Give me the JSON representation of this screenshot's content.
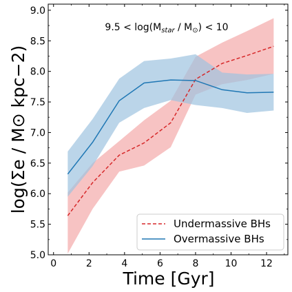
{
  "chart_data": {
    "type": "line",
    "annotation": "9.5 < log(M",
    "annotation_sub": "star",
    "annotation_mid": " / M",
    "annotation_sub2": "⊙",
    "annotation_end": ") < 10",
    "xlabel": "Time [Gyr]",
    "ylabel": "log(Σe / M⊙ kpc−2)",
    "xlim": [
      -0.3,
      13.2
    ],
    "ylim": [
      5.0,
      9.1
    ],
    "xticks": [
      0,
      2,
      4,
      6,
      8,
      10,
      12
    ],
    "yticks": [
      5.0,
      5.5,
      6.0,
      6.5,
      7.0,
      7.5,
      8.0,
      8.5,
      9.0
    ],
    "legend_position": "lower-right",
    "series": [
      {
        "name": "Undermassive BHs",
        "color": "#d62728",
        "band_color": "#f4a9a9",
        "line_style": "dashed",
        "x": [
          0.8,
          2.2,
          3.7,
          5.1,
          6.6,
          8.0,
          9.5,
          10.9,
          12.4
        ],
        "values": [
          5.64,
          6.18,
          6.63,
          6.83,
          7.16,
          7.87,
          8.13,
          8.26,
          8.41
        ],
        "lower": [
          5.02,
          5.75,
          6.36,
          6.46,
          6.76,
          7.62,
          7.79,
          7.86,
          7.96
        ],
        "upper": [
          6.02,
          6.5,
          6.86,
          7.2,
          7.52,
          8.24,
          8.47,
          8.66,
          8.87
        ]
      },
      {
        "name": "Overmassive BHs",
        "color": "#1f77b4",
        "band_color": "#9ec3e0",
        "line_style": "solid",
        "x": [
          0.8,
          2.2,
          3.7,
          5.1,
          6.6,
          8.0,
          9.5,
          10.9,
          12.4
        ],
        "values": [
          6.32,
          6.84,
          7.52,
          7.81,
          7.86,
          7.85,
          7.7,
          7.65,
          7.66
        ],
        "lower": [
          5.95,
          6.45,
          7.16,
          7.4,
          7.53,
          7.45,
          7.4,
          7.32,
          7.36
        ],
        "upper": [
          6.69,
          7.22,
          7.88,
          8.17,
          8.21,
          8.28,
          7.98,
          7.95,
          7.96
        ]
      }
    ]
  }
}
